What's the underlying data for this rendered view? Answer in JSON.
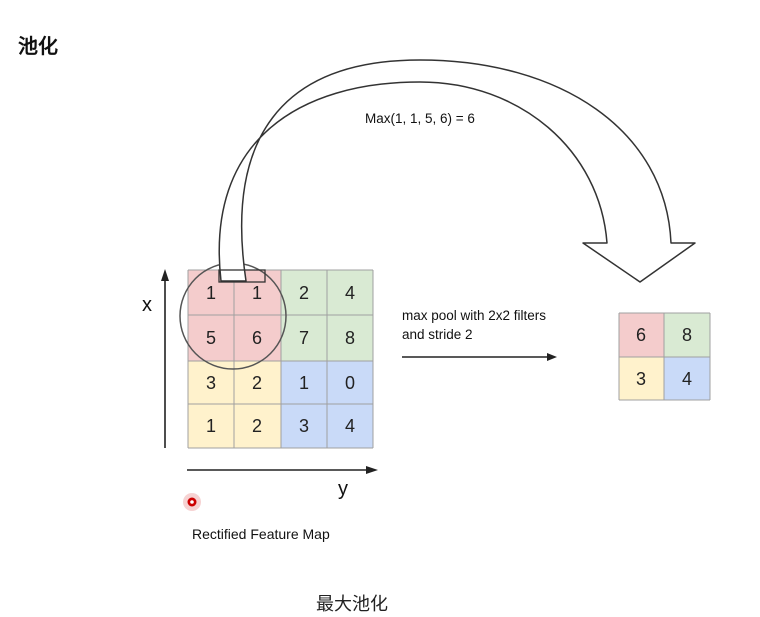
{
  "title": "池化",
  "caption": "最大池化",
  "formula": "Max(1, 1, 5, 6) = 6",
  "description_line1": "max pool with 2x2 filters",
  "description_line2": "and stride 2",
  "axis_x_label": "x",
  "axis_y_label": "y",
  "input_map_label": "Rectified Feature Map",
  "input_grid": [
    [
      "1",
      "1",
      "2",
      "4"
    ],
    [
      "5",
      "6",
      "7",
      "8"
    ],
    [
      "3",
      "2",
      "1",
      "0"
    ],
    [
      "1",
      "2",
      "3",
      "4"
    ]
  ],
  "output_grid": [
    [
      "6",
      "8"
    ],
    [
      "3",
      "4"
    ]
  ],
  "colors": {
    "red": "#f4cccc",
    "green": "#d9ead3",
    "yellow": "#fff2cc",
    "blue": "#c9daf8",
    "grid_line": "#999999",
    "dot": "#cc0000"
  }
}
